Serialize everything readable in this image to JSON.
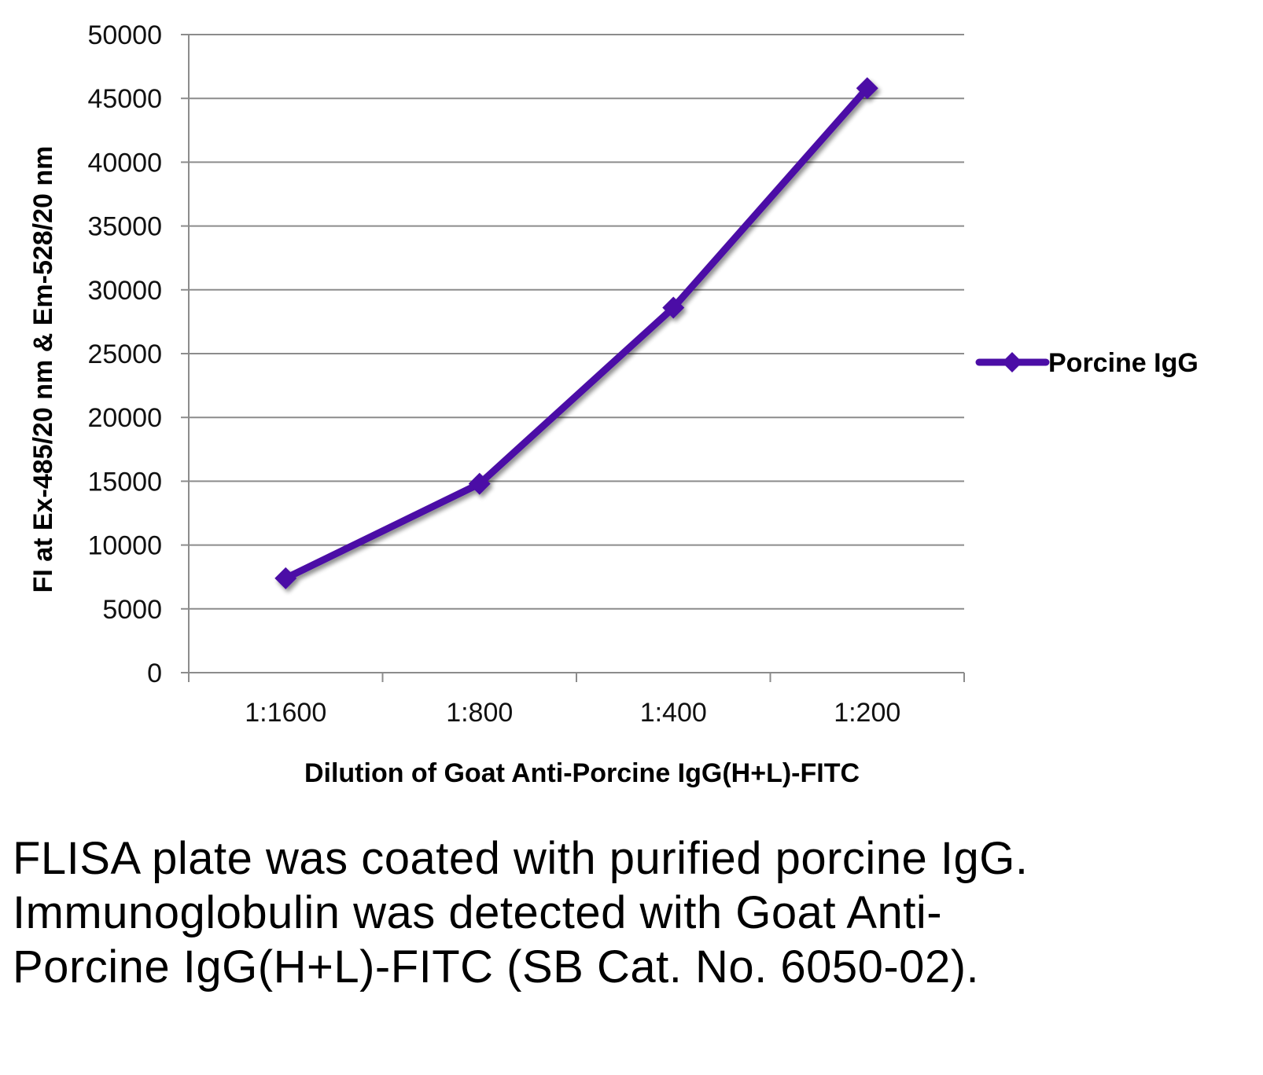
{
  "chart_data": {
    "type": "line",
    "categories": [
      "1:1600",
      "1:800",
      "1:400",
      "1:200"
    ],
    "series": [
      {
        "name": "Porcine IgG",
        "values": [
          7400,
          14800,
          28600,
          45800
        ],
        "color": "#4B0DA6"
      }
    ],
    "xlabel": "Dilution of Goat Anti-Porcine IgG(H+L)-FITC",
    "ylabel": "FI at Ex-485/20 nm & Em-528/20 nm",
    "ylim": [
      0,
      50000
    ],
    "yticks": [
      0,
      5000,
      10000,
      15000,
      20000,
      25000,
      30000,
      35000,
      40000,
      45000,
      50000
    ],
    "grid": true,
    "legend": "right",
    "marker": "diamond"
  },
  "caption": "FLISA plate was coated with purified porcine IgG.  Immunoglobulin was detected with Goat Anti-Porcine IgG(H+L)-FITC (SB Cat. No. 6050-02)."
}
